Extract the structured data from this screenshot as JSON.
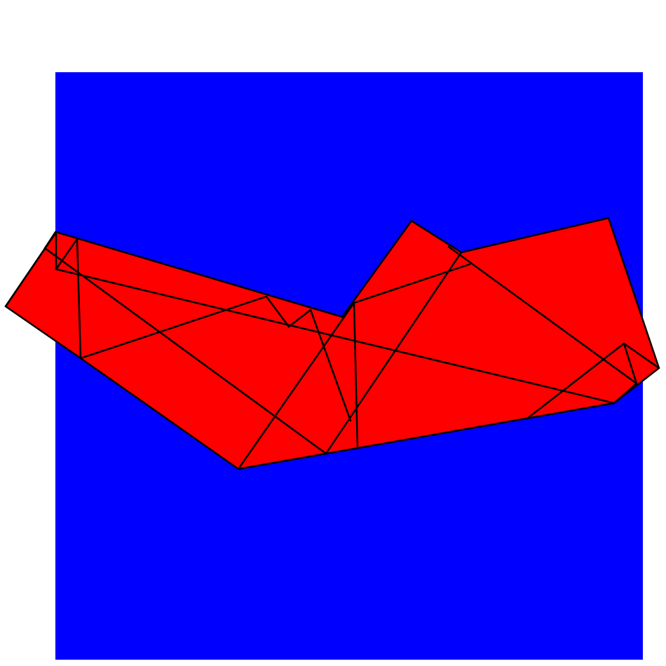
{
  "colors": {
    "page": "#ffffff",
    "square": "#0000ff",
    "shape": "#ff0000",
    "stroke": "#000000"
  }
}
